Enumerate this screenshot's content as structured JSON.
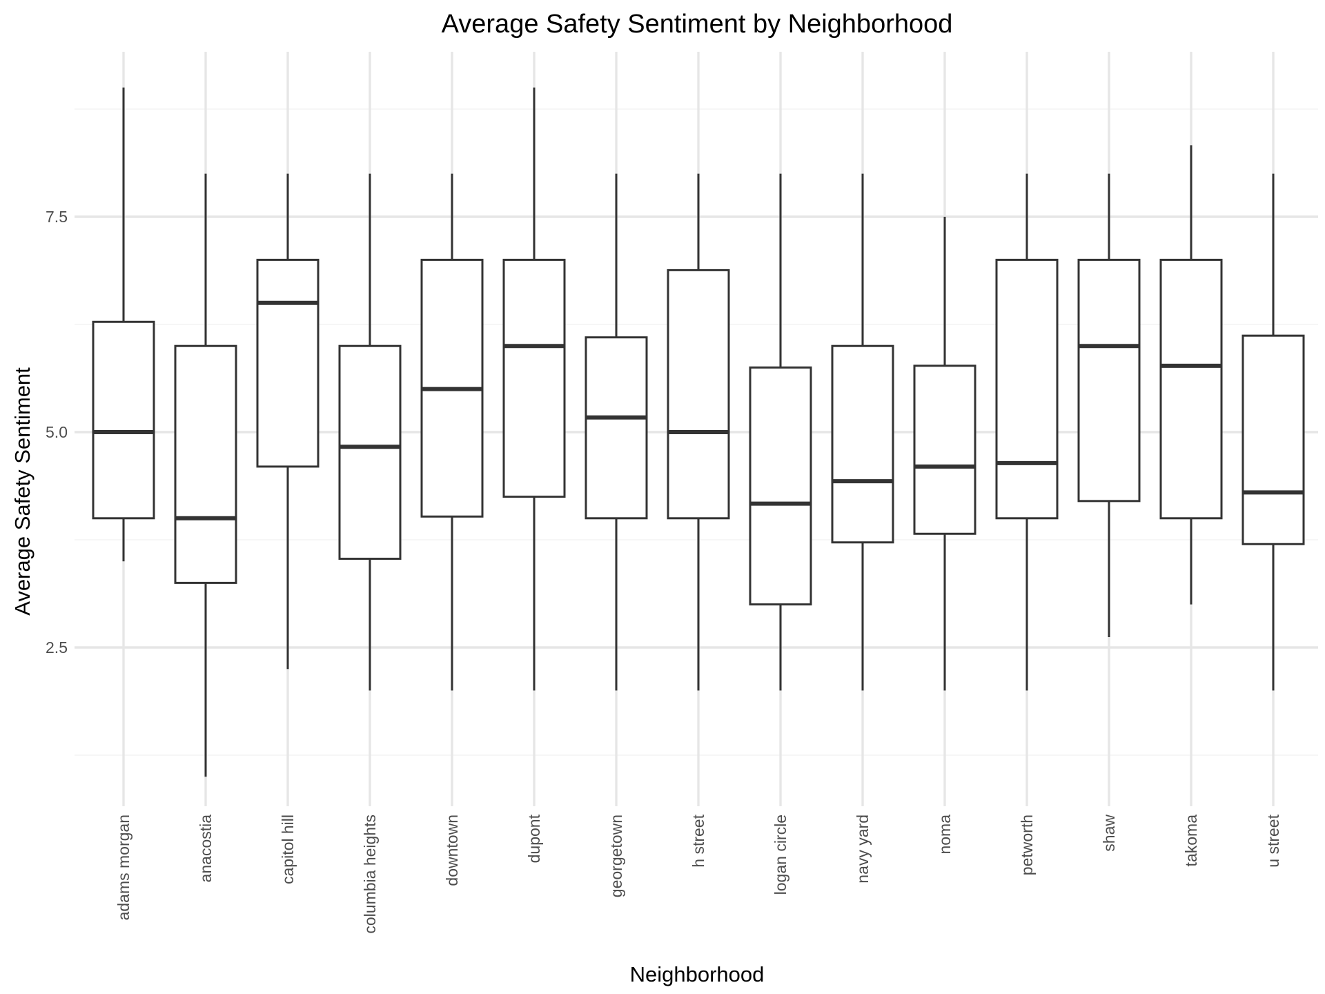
{
  "chart_data": {
    "type": "boxplot",
    "title": "Average Safety Sentiment by Neighborhood",
    "xlabel": "Neighborhood",
    "ylabel": "Average Safety Sentiment",
    "ylim": [
      0.75,
      9.4
    ],
    "yticks": [
      2.5,
      5.0,
      7.5
    ],
    "ytick_labels": [
      "2.5",
      "5.0",
      "7.5"
    ],
    "grid": true,
    "legend": "none",
    "colors": {
      "box_stroke": "#333333",
      "box_fill": "#ffffff",
      "grid": "#e6e6e6"
    },
    "categories": [
      "adams morgan",
      "anacostia",
      "capitol hill",
      "columbia heights",
      "downtown",
      "dupont",
      "georgetown",
      "h street",
      "logan circle",
      "navy yard",
      "noma",
      "petworth",
      "shaw",
      "takoma",
      "u street"
    ],
    "boxes": [
      {
        "category": "adams morgan",
        "min": 3.5,
        "q1": 4.0,
        "median": 5.0,
        "q3": 6.28,
        "max": 9.0
      },
      {
        "category": "anacostia",
        "min": 1.0,
        "q1": 3.25,
        "median": 4.0,
        "q3": 6.0,
        "max": 8.0
      },
      {
        "category": "capitol hill",
        "min": 2.25,
        "q1": 4.6,
        "median": 6.5,
        "q3": 7.0,
        "max": 8.0
      },
      {
        "category": "columbia heights",
        "min": 2.0,
        "q1": 3.53,
        "median": 4.83,
        "q3": 6.0,
        "max": 8.0
      },
      {
        "category": "downtown",
        "min": 2.0,
        "q1": 4.02,
        "median": 5.5,
        "q3": 7.0,
        "max": 8.0
      },
      {
        "category": "dupont",
        "min": 2.0,
        "q1": 4.25,
        "median": 6.0,
        "q3": 7.0,
        "max": 9.0
      },
      {
        "category": "georgetown",
        "min": 2.0,
        "q1": 4.0,
        "median": 5.17,
        "q3": 6.1,
        "max": 8.0
      },
      {
        "category": "h street",
        "min": 2.0,
        "q1": 4.0,
        "median": 5.0,
        "q3": 6.88,
        "max": 8.0
      },
      {
        "category": "logan circle",
        "min": 2.0,
        "q1": 3.0,
        "median": 4.17,
        "q3": 5.75,
        "max": 8.0
      },
      {
        "category": "navy yard",
        "min": 2.0,
        "q1": 3.72,
        "median": 4.43,
        "q3": 6.0,
        "max": 8.0
      },
      {
        "category": "noma",
        "min": 2.0,
        "q1": 3.82,
        "median": 4.6,
        "q3": 5.77,
        "max": 7.5
      },
      {
        "category": "petworth",
        "min": 2.0,
        "q1": 4.0,
        "median": 4.64,
        "q3": 7.0,
        "max": 8.0
      },
      {
        "category": "shaw",
        "min": 2.62,
        "q1": 4.2,
        "median": 6.0,
        "q3": 7.0,
        "max": 8.0
      },
      {
        "category": "takoma",
        "min": 3.0,
        "q1": 4.0,
        "median": 5.77,
        "q3": 7.0,
        "max": 8.33
      },
      {
        "category": "u street",
        "min": 2.0,
        "q1": 3.7,
        "median": 4.3,
        "q3": 6.12,
        "max": 8.0
      }
    ]
  }
}
